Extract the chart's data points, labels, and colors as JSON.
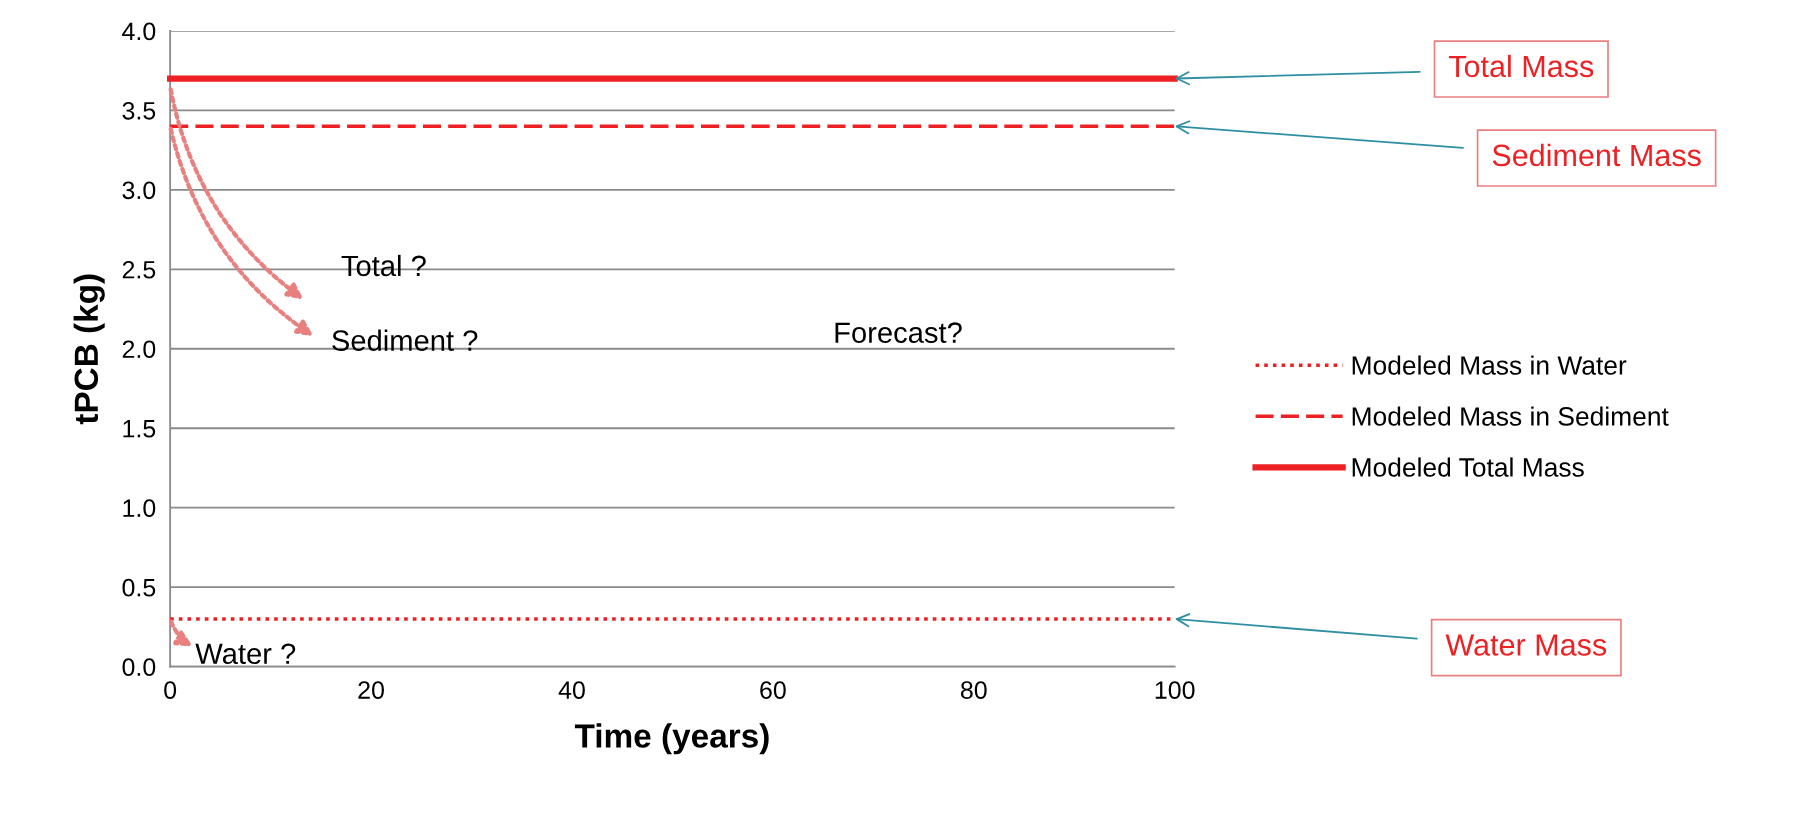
{
  "chart_data": {
    "type": "line",
    "xlabel": "Time (years)",
    "ylabel": "tPCB (kg)",
    "x": [
      0,
      100
    ],
    "series": [
      {
        "name": "Modeled Mass in Water",
        "color": "#ed2024",
        "values": [
          0.3,
          0.3
        ],
        "line_style": "dotted"
      },
      {
        "name": "Modeled Mass in Sediment",
        "color": "#ed2024",
        "values": [
          3.4,
          3.4
        ],
        "line_style": "dashed"
      },
      {
        "name": "Modeled Total Mass",
        "color": "#ed2024",
        "values": [
          3.7,
          3.7
        ],
        "line_style": "solid"
      }
    ],
    "xlim": [
      0,
      100
    ],
    "xticks": [
      0,
      20,
      40,
      60,
      80,
      100
    ],
    "ylim": [
      0,
      4
    ],
    "yticks": [
      {
        "value": 0,
        "label": "0.0"
      },
      {
        "value": 0.5,
        "label": "0.5"
      },
      {
        "value": 1,
        "label": "1.0"
      },
      {
        "value": 1.5,
        "label": "1.5"
      },
      {
        "value": 2,
        "label": "2.0"
      },
      {
        "value": 2.5,
        "label": "2.5"
      },
      {
        "value": 3,
        "label": "3.0"
      },
      {
        "value": 3.5,
        "label": "3.5"
      },
      {
        "value": 4,
        "label": "4.0"
      }
    ],
    "grid": "y",
    "legend": "right",
    "marker": "none",
    "annotations": [
      "Total Mass",
      "Sediment Mass",
      "Water Mass",
      "Total ?",
      "Sediment ?",
      "Water ?",
      "Forecast?"
    ]
  }
}
